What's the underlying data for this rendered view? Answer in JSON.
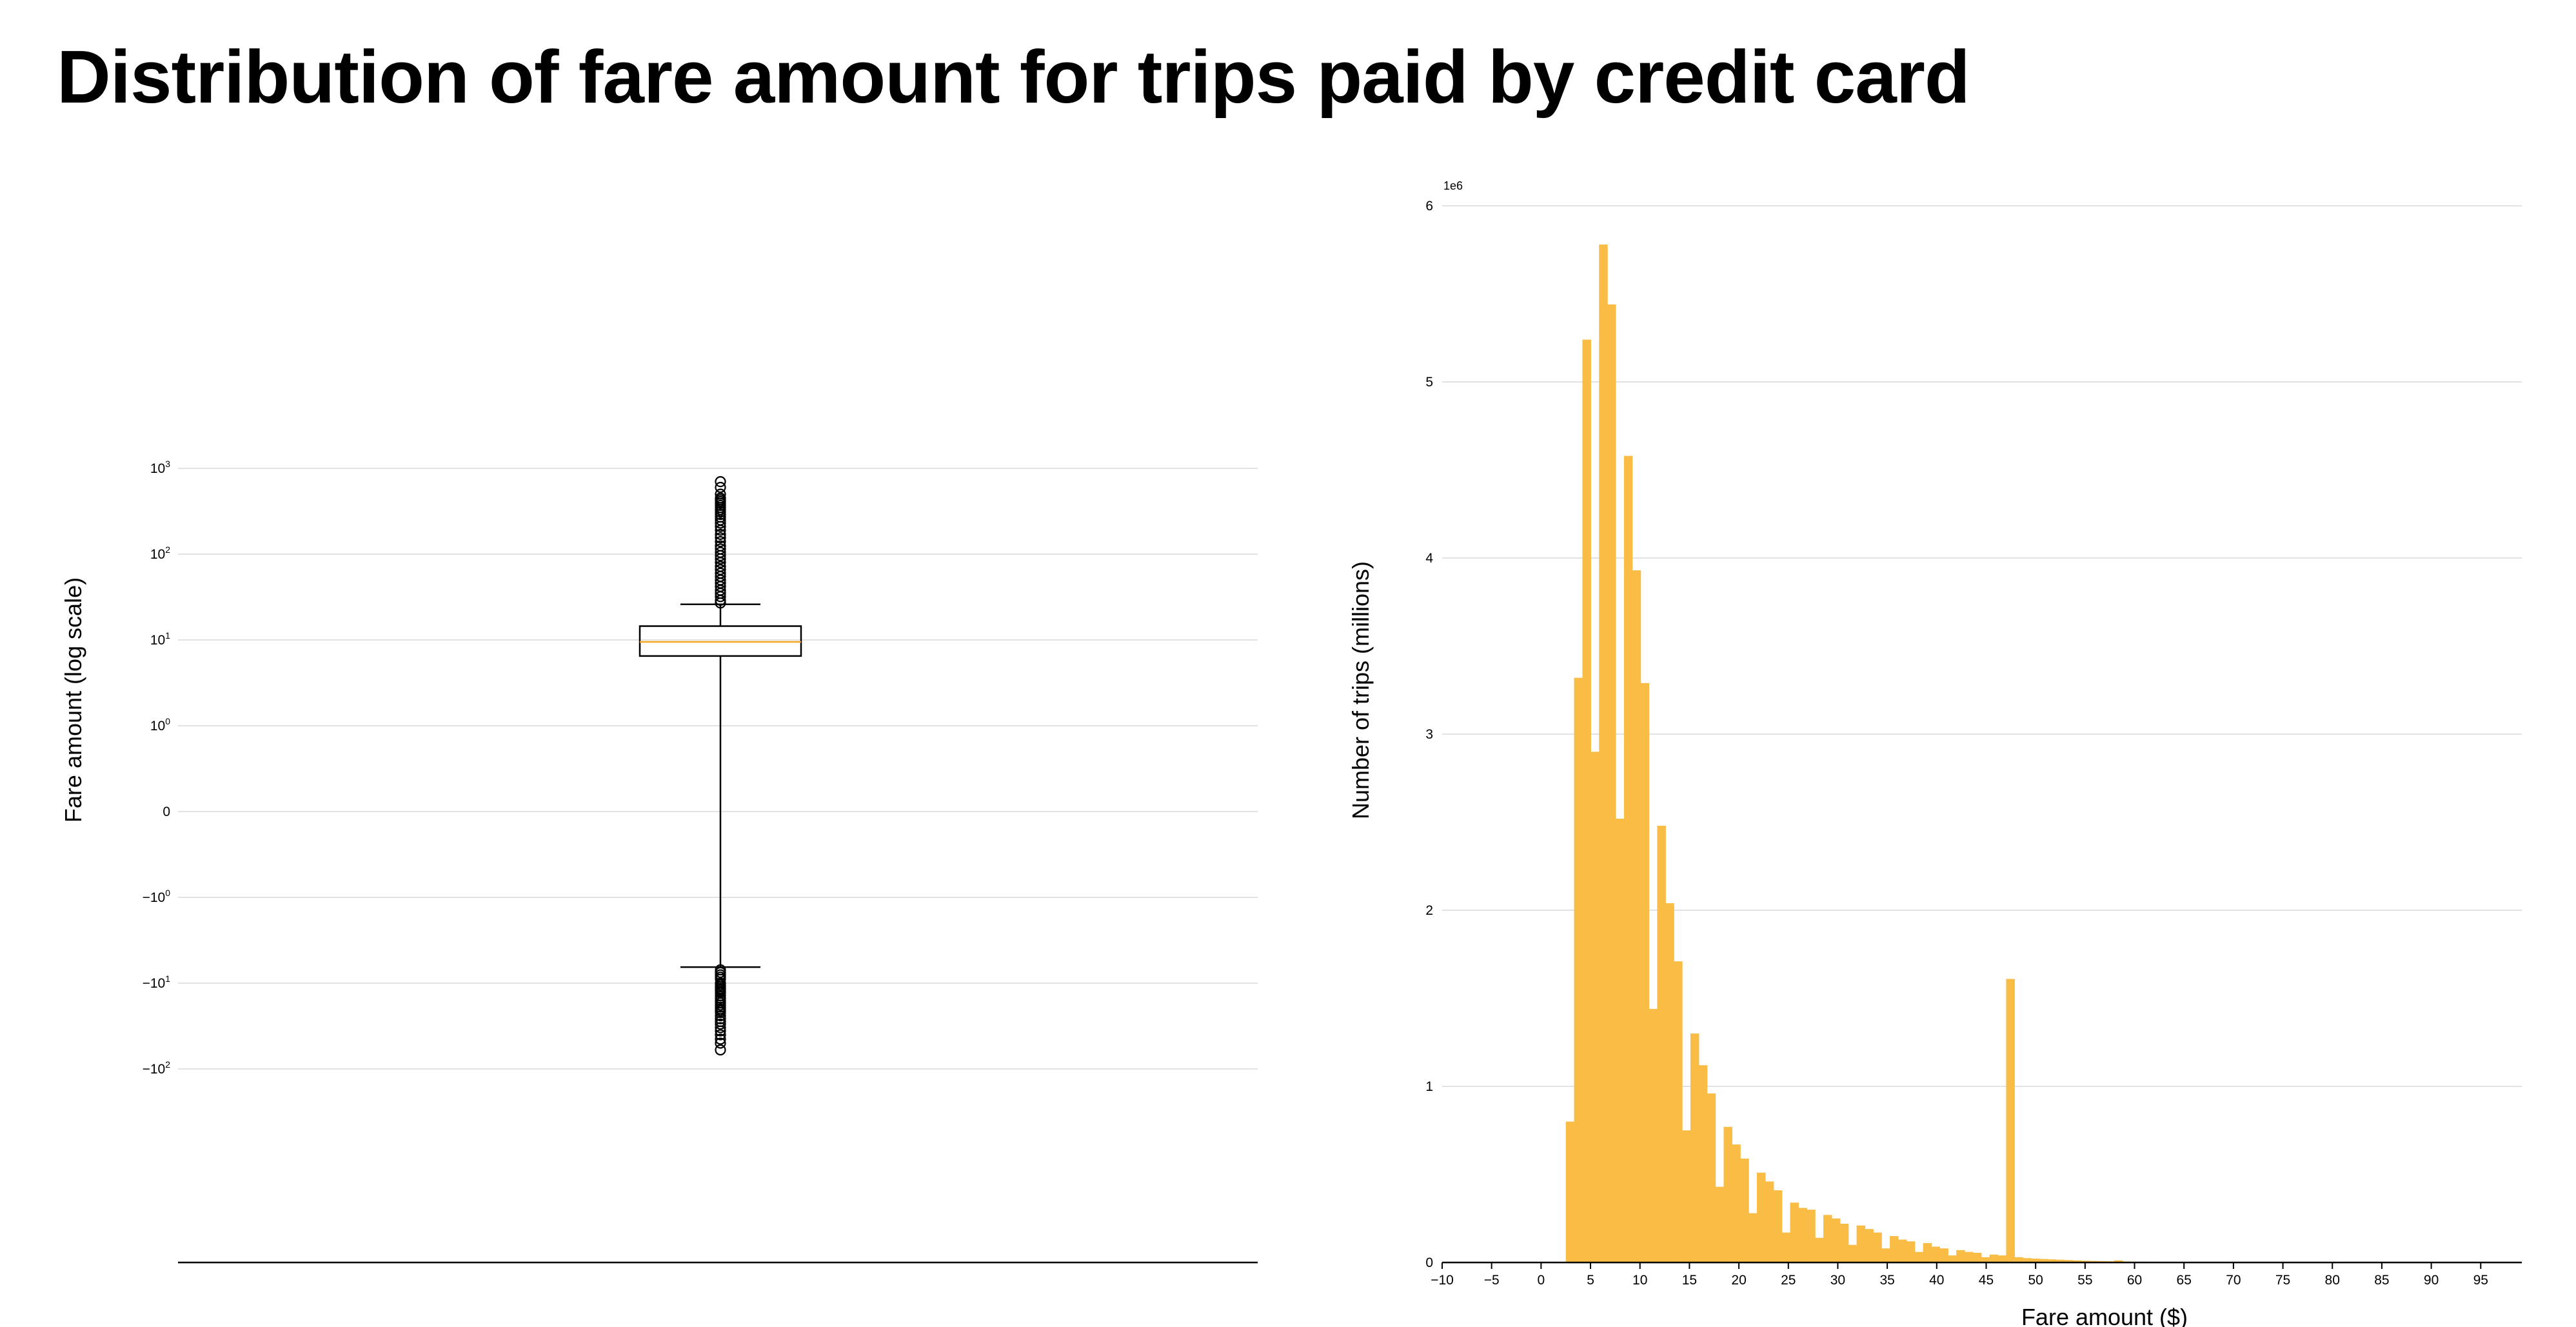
{
  "title": "Distribution of fare amount for trips paid by credit card",
  "colors": {
    "bar": "#f9bc45",
    "median": "#f5a623",
    "grid": "#e2e2e2",
    "box": "#000000"
  },
  "chart_data": [
    {
      "type": "box",
      "ylabel": "Fare amount (log scale)",
      "yscale": "symlog",
      "yticks": [
        {
          "value": 1000,
          "base": "10",
          "exp": "3"
        },
        {
          "value": 100,
          "base": "10",
          "exp": "2"
        },
        {
          "value": 10,
          "base": "10",
          "exp": "1"
        },
        {
          "value": 1,
          "base": "10",
          "exp": "0"
        },
        {
          "value": 0,
          "base": "0",
          "exp": ""
        },
        {
          "value": -1,
          "base": "−10",
          "exp": "0"
        },
        {
          "value": -10,
          "base": "−10",
          "exp": "1"
        },
        {
          "value": -100,
          "base": "−10",
          "exp": "2"
        }
      ],
      "grid": true,
      "box": {
        "q1": 6.5,
        "median": 9.5,
        "q3": 14.5,
        "whisker_low": -6.5,
        "whisker_high": 26
      },
      "fliers_high": [
        27,
        29,
        32,
        35,
        38,
        42,
        46,
        50,
        55,
        60,
        66,
        72,
        80,
        88,
        96,
        105,
        115,
        125,
        140,
        155,
        170,
        190,
        210,
        230,
        250,
        270,
        290,
        310,
        330,
        350,
        370,
        390,
        410,
        430,
        450,
        500,
        600,
        700
      ],
      "fliers_low": [
        -7,
        -7.5,
        -8,
        -8.5,
        -9,
        -10,
        -10.5,
        -11,
        -11.5,
        -12,
        -12.5,
        -13,
        -14,
        -15,
        -16,
        -17,
        -18,
        -19,
        -20,
        -21,
        -22,
        -24,
        -26,
        -28,
        -30,
        -33,
        -36,
        -40,
        -45,
        -50,
        -60
      ]
    },
    {
      "type": "bar",
      "xlabel": "Fare amount ($)",
      "ylabel": "Number of trips (millions)",
      "offset_label": "1e6",
      "xlim": [
        -10,
        100
      ],
      "ylim": [
        0,
        6000000
      ],
      "xticks": [
        -10,
        -5,
        0,
        5,
        10,
        15,
        20,
        25,
        30,
        35,
        40,
        45,
        50,
        55,
        60,
        65,
        70,
        75,
        80,
        85,
        90,
        95
      ],
      "yticks": [
        0,
        1,
        2,
        3,
        4,
        5,
        6
      ],
      "grid": true,
      "bin_width": 0.84,
      "bin_edges_start": 2.5,
      "values": [
        800000,
        3320000,
        5240000,
        2900000,
        5780000,
        5440000,
        2520000,
        4580000,
        3930000,
        3290000,
        1440000,
        2480000,
        2040000,
        1710000,
        750000,
        1300000,
        1120000,
        960000,
        430000,
        770000,
        670000,
        590000,
        280000,
        510000,
        460000,
        410000,
        170000,
        340000,
        310000,
        300000,
        140000,
        270000,
        250000,
        220000,
        100000,
        210000,
        190000,
        170000,
        80000,
        150000,
        130000,
        120000,
        60000,
        110000,
        90000,
        80000,
        40000,
        70000,
        60000,
        55000,
        30000,
        45000,
        40000,
        1610000,
        30000,
        25000,
        22000,
        20000,
        18000,
        16000,
        14000,
        12000,
        10000,
        9000,
        8000,
        7000,
        12000,
        6000,
        5000,
        4500,
        4000,
        3500,
        3000,
        2800,
        2500,
        2200,
        2000,
        1800,
        1600,
        1400,
        1200,
        1100,
        1000,
        900,
        800,
        700,
        600,
        500,
        400,
        350,
        300,
        250,
        200,
        150,
        100,
        80,
        60,
        40,
        20,
        10,
        5,
        0,
        0,
        0,
        0,
        0,
        0,
        0
      ]
    }
  ]
}
